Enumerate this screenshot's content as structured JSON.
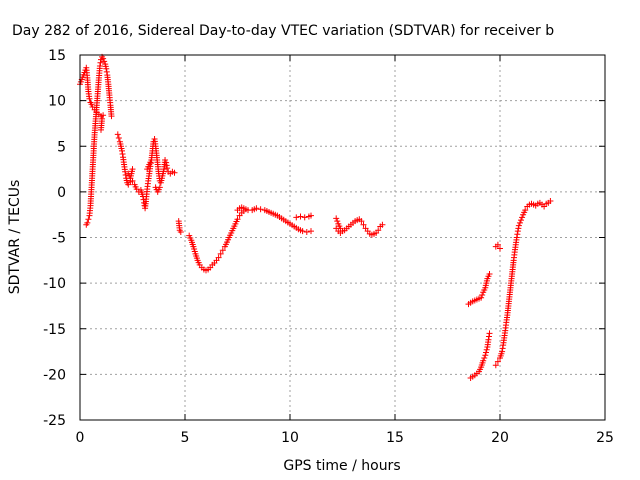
{
  "chart_data": {
    "type": "scatter",
    "title": "Day 282 of 2016, Sidereal Day-to-day VTEC variation (SDTVAR) for receiver b",
    "xlabel": "GPS time / hours",
    "ylabel": "SDTVAR / TECUs",
    "xlim": [
      0,
      25
    ],
    "ylim": [
      -25,
      15
    ],
    "xticks": [
      "0",
      "5",
      "10",
      "15",
      "20",
      "25"
    ],
    "yticks": [
      "15",
      "10",
      "5",
      "0",
      "-5",
      "-10",
      "-15",
      "-20",
      "-25"
    ],
    "grid": true,
    "marker": "+",
    "color": "#ff0000",
    "series": [
      {
        "segments": [
          [
            [
              0.0,
              11.8
            ],
            [
              0.3,
              13.6
            ],
            [
              0.35,
              12.5
            ],
            [
              0.4,
              11.0
            ],
            [
              0.45,
              10.2
            ],
            [
              0.5,
              9.8
            ],
            [
              0.55,
              9.6
            ],
            [
              0.6,
              9.3
            ],
            [
              0.7,
              9.0
            ],
            [
              0.8,
              8.7
            ],
            [
              0.9,
              8.5
            ],
            [
              1.0,
              8.3
            ],
            [
              1.1,
              8.4
            ]
          ],
          [
            [
              0.3,
              -3.6
            ],
            [
              0.35,
              -3.4
            ],
            [
              0.4,
              -3.0
            ],
            [
              0.45,
              -2.6
            ],
            [
              0.5,
              -1.5
            ],
            [
              0.55,
              0.5
            ],
            [
              0.6,
              2.5
            ],
            [
              0.65,
              4.5
            ],
            [
              0.7,
              6.5
            ],
            [
              0.75,
              8.0
            ],
            [
              0.8,
              9.5
            ],
            [
              0.85,
              11.0
            ],
            [
              0.9,
              12.5
            ],
            [
              0.95,
              13.8
            ],
            [
              1.0,
              14.5
            ],
            [
              1.05,
              14.8
            ],
            [
              1.1,
              14.6
            ],
            [
              1.15,
              14.3
            ],
            [
              1.2,
              14.0
            ],
            [
              1.25,
              13.5
            ],
            [
              1.3,
              12.8
            ],
            [
              1.35,
              11.8
            ],
            [
              1.4,
              10.6
            ],
            [
              1.45,
              9.5
            ],
            [
              1.5,
              8.3
            ]
          ],
          [
            [
              1.0,
              6.8
            ],
            [
              1.05,
              8.0
            ]
          ],
          [
            [
              1.8,
              6.3
            ],
            [
              1.85,
              5.9
            ],
            [
              1.9,
              5.5
            ],
            [
              1.95,
              5.0
            ],
            [
              2.0,
              4.5
            ],
            [
              2.05,
              3.8
            ],
            [
              2.1,
              3.0
            ],
            [
              2.15,
              2.2
            ],
            [
              2.2,
              1.5
            ],
            [
              2.25,
              1.0
            ],
            [
              2.3,
              0.8
            ],
            [
              2.4,
              1.1
            ],
            [
              2.5,
              1.2
            ],
            [
              2.6,
              0.8
            ],
            [
              2.7,
              0.3
            ],
            [
              2.8,
              0.0
            ],
            [
              2.9,
              0.2
            ],
            [
              3.0,
              -0.5
            ],
            [
              3.05,
              -1.2
            ],
            [
              3.1,
              -1.8
            ],
            [
              3.15,
              -0.8
            ],
            [
              3.2,
              0.3
            ],
            [
              3.25,
              1.2
            ],
            [
              3.3,
              2.0
            ],
            [
              3.35,
              2.8
            ],
            [
              3.4,
              3.5
            ],
            [
              3.45,
              4.5
            ],
            [
              3.5,
              5.5
            ],
            [
              3.55,
              5.8
            ],
            [
              3.6,
              5.0
            ],
            [
              3.65,
              4.0
            ],
            [
              3.7,
              3.0
            ],
            [
              3.75,
              2.0
            ],
            [
              3.8,
              1.2
            ],
            [
              3.85,
              1.0
            ],
            [
              3.9,
              1.5
            ],
            [
              4.0,
              2.5
            ],
            [
              4.05,
              3.5
            ],
            [
              4.1,
              3.2
            ],
            [
              4.15,
              2.6
            ],
            [
              4.2,
              2.2
            ],
            [
              4.3,
              2.0
            ],
            [
              4.4,
              2.2
            ],
            [
              4.5,
              2.1
            ]
          ],
          [
            [
              2.3,
              2.0
            ],
            [
              2.4,
              1.5
            ],
            [
              2.5,
              2.5
            ]
          ],
          [
            [
              3.2,
              2.5
            ],
            [
              3.3,
              3.0
            ],
            [
              3.4,
              3.5
            ]
          ],
          [
            [
              3.6,
              0.5
            ],
            [
              3.7,
              0.0
            ],
            [
              3.8,
              0.5
            ]
          ],
          [
            [
              4.7,
              -3.2
            ],
            [
              4.75,
              -4.2
            ],
            [
              4.8,
              -4.4
            ]
          ],
          [
            [
              5.2,
              -4.8
            ],
            [
              5.3,
              -5.3
            ],
            [
              5.4,
              -6.0
            ],
            [
              5.5,
              -6.8
            ],
            [
              5.6,
              -7.5
            ],
            [
              5.7,
              -8.0
            ],
            [
              5.8,
              -8.3
            ],
            [
              5.9,
              -8.5
            ],
            [
              6.0,
              -8.6
            ],
            [
              6.1,
              -8.5
            ],
            [
              6.2,
              -8.3
            ],
            [
              6.3,
              -8.0
            ],
            [
              6.4,
              -7.8
            ],
            [
              6.5,
              -7.5
            ],
            [
              6.6,
              -7.2
            ],
            [
              6.7,
              -6.8
            ],
            [
              6.8,
              -6.4
            ],
            [
              6.9,
              -6.0
            ],
            [
              7.0,
              -5.5
            ],
            [
              7.1,
              -5.0
            ],
            [
              7.2,
              -4.5
            ],
            [
              7.3,
              -4.0
            ],
            [
              7.4,
              -3.5
            ],
            [
              7.5,
              -3.0
            ],
            [
              7.6,
              -2.6
            ],
            [
              7.7,
              -2.3
            ],
            [
              7.8,
              -2.1
            ],
            [
              8.0,
              -2.0
            ],
            [
              8.2,
              -2.0
            ],
            [
              8.4,
              -1.8
            ],
            [
              8.6,
              -1.9
            ],
            [
              8.8,
              -2.0
            ],
            [
              9.0,
              -2.2
            ],
            [
              9.2,
              -2.4
            ],
            [
              9.4,
              -2.6
            ],
            [
              9.6,
              -2.9
            ],
            [
              9.8,
              -3.2
            ],
            [
              10.0,
              -3.5
            ],
            [
              10.2,
              -3.8
            ],
            [
              10.4,
              -4.1
            ],
            [
              10.6,
              -4.3
            ],
            [
              10.8,
              -4.4
            ],
            [
              11.0,
              -4.3
            ]
          ],
          [
            [
              7.5,
              -2.0
            ],
            [
              7.6,
              -1.8
            ],
            [
              7.7,
              -1.7
            ],
            [
              7.8,
              -1.8
            ],
            [
              7.9,
              -1.9
            ]
          ],
          [
            [
              10.3,
              -2.8
            ],
            [
              10.5,
              -2.7
            ],
            [
              10.7,
              -2.8
            ],
            [
              10.9,
              -2.7
            ],
            [
              11.0,
              -2.6
            ]
          ],
          [
            [
              12.2,
              -2.9
            ],
            [
              12.3,
              -3.5
            ],
            [
              12.4,
              -4.0
            ],
            [
              12.5,
              -4.3
            ],
            [
              12.6,
              -4.2
            ],
            [
              12.7,
              -4.0
            ],
            [
              12.8,
              -3.8
            ],
            [
              12.9,
              -3.6
            ],
            [
              13.0,
              -3.4
            ],
            [
              13.1,
              -3.2
            ],
            [
              13.2,
              -3.1
            ],
            [
              13.3,
              -3.0
            ],
            [
              13.4,
              -3.2
            ],
            [
              13.5,
              -3.6
            ],
            [
              13.6,
              -4.0
            ],
            [
              13.7,
              -4.3
            ],
            [
              13.8,
              -4.6
            ],
            [
              13.9,
              -4.7
            ],
            [
              14.0,
              -4.6
            ],
            [
              14.1,
              -4.5
            ],
            [
              14.2,
              -4.2
            ],
            [
              14.3,
              -3.8
            ],
            [
              14.4,
              -3.6
            ]
          ],
          [
            [
              12.2,
              -4.0
            ],
            [
              12.3,
              -4.3
            ],
            [
              12.4,
              -4.5
            ]
          ],
          [
            [
              18.5,
              -12.3
            ],
            [
              18.7,
              -12.0
            ],
            [
              18.9,
              -11.8
            ],
            [
              19.1,
              -11.6
            ],
            [
              19.2,
              -11.0
            ],
            [
              19.3,
              -10.5
            ],
            [
              19.4,
              -9.5
            ],
            [
              19.5,
              -9.0
            ]
          ],
          [
            [
              18.6,
              -20.4
            ],
            [
              18.8,
              -20.1
            ],
            [
              19.0,
              -19.7
            ],
            [
              19.1,
              -19.2
            ],
            [
              19.2,
              -18.5
            ],
            [
              19.3,
              -17.9
            ],
            [
              19.4,
              -17.0
            ],
            [
              19.45,
              -16.2
            ],
            [
              19.5,
              -15.5
            ]
          ],
          [
            [
              19.8,
              -6.0
            ],
            [
              19.9,
              -5.8
            ],
            [
              20.0,
              -6.2
            ]
          ],
          [
            [
              19.8,
              -19.0
            ],
            [
              19.9,
              -18.6
            ],
            [
              20.0,
              -18.2
            ],
            [
              20.1,
              -17.5
            ],
            [
              20.15,
              -16.8
            ],
            [
              20.2,
              -16.0
            ],
            [
              20.25,
              -15.2
            ],
            [
              20.3,
              -14.3
            ],
            [
              20.35,
              -13.5
            ],
            [
              20.4,
              -12.5
            ],
            [
              20.45,
              -11.5
            ],
            [
              20.5,
              -10.5
            ],
            [
              20.55,
              -9.5
            ],
            [
              20.6,
              -8.5
            ],
            [
              20.65,
              -7.5
            ],
            [
              20.7,
              -6.6
            ],
            [
              20.75,
              -5.8
            ],
            [
              20.8,
              -5.0
            ],
            [
              20.85,
              -4.3
            ],
            [
              20.9,
              -3.7
            ],
            [
              21.0,
              -3.1
            ],
            [
              21.1,
              -2.5
            ],
            [
              21.2,
              -2.0
            ],
            [
              21.3,
              -1.6
            ],
            [
              21.4,
              -1.4
            ],
            [
              21.5,
              -1.3
            ],
            [
              21.6,
              -1.4
            ],
            [
              21.7,
              -1.5
            ],
            [
              21.8,
              -1.3
            ],
            [
              21.9,
              -1.2
            ],
            [
              22.0,
              -1.4
            ],
            [
              22.1,
              -1.6
            ],
            [
              22.2,
              -1.3
            ],
            [
              22.3,
              -1.2
            ],
            [
              22.4,
              -1.0
            ]
          ]
        ]
      }
    ]
  }
}
